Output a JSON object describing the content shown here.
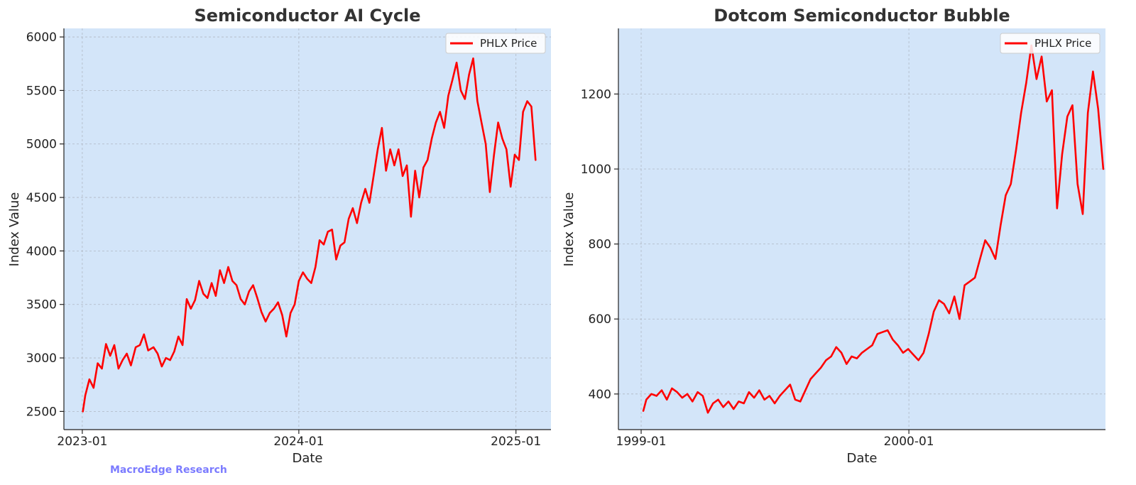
{
  "watermark": "MacroEdge Research",
  "chart_data": [
    {
      "type": "line",
      "title": "Semiconductor AI Cycle",
      "xlabel": "Date",
      "ylabel": "Index Value",
      "x_type": "date",
      "xlim": [
        "2022-12-01",
        "2025-03-01"
      ],
      "ylim": [
        2330,
        6080
      ],
      "y_ticks": [
        2500,
        3000,
        3500,
        4000,
        4500,
        5000,
        5500,
        6000
      ],
      "x_ticks": [
        {
          "value": "2023-01-01",
          "label": "2023-01"
        },
        {
          "value": "2024-01-01",
          "label": "2024-01"
        },
        {
          "value": "2025-01-01",
          "label": "2025-01"
        }
      ],
      "grid": true,
      "legend_position": "top-right",
      "colors": {
        "background": "#d3e5f9",
        "line": "#ff0000"
      },
      "series": [
        {
          "name": "PHLX Price",
          "color": "#ff0000",
          "points": [
            [
              "2023-01-02",
              2500
            ],
            [
              "2023-01-06",
              2650
            ],
            [
              "2023-01-13",
              2800
            ],
            [
              "2023-01-20",
              2720
            ],
            [
              "2023-01-27",
              2950
            ],
            [
              "2023-02-03",
              2900
            ],
            [
              "2023-02-10",
              3130
            ],
            [
              "2023-02-17",
              3020
            ],
            [
              "2023-02-24",
              3120
            ],
            [
              "2023-03-03",
              2900
            ],
            [
              "2023-03-10",
              2980
            ],
            [
              "2023-03-17",
              3040
            ],
            [
              "2023-03-24",
              2930
            ],
            [
              "2023-04-01",
              3100
            ],
            [
              "2023-04-08",
              3120
            ],
            [
              "2023-04-15",
              3220
            ],
            [
              "2023-04-22",
              3070
            ],
            [
              "2023-05-01",
              3100
            ],
            [
              "2023-05-08",
              3040
            ],
            [
              "2023-05-15",
              2920
            ],
            [
              "2023-05-22",
              3000
            ],
            [
              "2023-05-29",
              2980
            ],
            [
              "2023-06-05",
              3060
            ],
            [
              "2023-06-12",
              3200
            ],
            [
              "2023-06-19",
              3120
            ],
            [
              "2023-06-26",
              3550
            ],
            [
              "2023-07-03",
              3460
            ],
            [
              "2023-07-10",
              3540
            ],
            [
              "2023-07-17",
              3720
            ],
            [
              "2023-07-24",
              3600
            ],
            [
              "2023-07-31",
              3560
            ],
            [
              "2023-08-07",
              3700
            ],
            [
              "2023-08-14",
              3580
            ],
            [
              "2023-08-21",
              3820
            ],
            [
              "2023-08-28",
              3700
            ],
            [
              "2023-09-04",
              3850
            ],
            [
              "2023-09-11",
              3720
            ],
            [
              "2023-09-18",
              3680
            ],
            [
              "2023-09-25",
              3550
            ],
            [
              "2023-10-02",
              3500
            ],
            [
              "2023-10-09",
              3620
            ],
            [
              "2023-10-16",
              3680
            ],
            [
              "2023-10-23",
              3560
            ],
            [
              "2023-10-30",
              3430
            ],
            [
              "2023-11-06",
              3340
            ],
            [
              "2023-11-13",
              3420
            ],
            [
              "2023-11-20",
              3460
            ],
            [
              "2023-11-27",
              3520
            ],
            [
              "2023-12-04",
              3400
            ],
            [
              "2023-12-11",
              3200
            ],
            [
              "2023-12-18",
              3420
            ],
            [
              "2023-12-25",
              3500
            ],
            [
              "2024-01-01",
              3720
            ],
            [
              "2024-01-08",
              3800
            ],
            [
              "2024-01-15",
              3740
            ],
            [
              "2024-01-22",
              3700
            ],
            [
              "2024-01-29",
              3850
            ],
            [
              "2024-02-05",
              4100
            ],
            [
              "2024-02-12",
              4060
            ],
            [
              "2024-02-19",
              4180
            ],
            [
              "2024-02-26",
              4200
            ],
            [
              "2024-03-04",
              3920
            ],
            [
              "2024-03-11",
              4050
            ],
            [
              "2024-03-18",
              4080
            ],
            [
              "2024-03-25",
              4300
            ],
            [
              "2024-04-01",
              4400
            ],
            [
              "2024-04-08",
              4260
            ],
            [
              "2024-04-15",
              4450
            ],
            [
              "2024-04-22",
              4580
            ],
            [
              "2024-04-29",
              4450
            ],
            [
              "2024-05-06",
              4700
            ],
            [
              "2024-05-13",
              4950
            ],
            [
              "2024-05-20",
              5150
            ],
            [
              "2024-05-27",
              4750
            ],
            [
              "2024-06-03",
              4950
            ],
            [
              "2024-06-10",
              4800
            ],
            [
              "2024-06-17",
              4950
            ],
            [
              "2024-06-24",
              4700
            ],
            [
              "2024-07-01",
              4800
            ],
            [
              "2024-07-08",
              4320
            ],
            [
              "2024-07-15",
              4750
            ],
            [
              "2024-07-22",
              4500
            ],
            [
              "2024-07-29",
              4780
            ],
            [
              "2024-08-05",
              4850
            ],
            [
              "2024-08-12",
              5050
            ],
            [
              "2024-08-19",
              5200
            ],
            [
              "2024-08-26",
              5300
            ],
            [
              "2024-09-02",
              5150
            ],
            [
              "2024-09-09",
              5450
            ],
            [
              "2024-09-16",
              5600
            ],
            [
              "2024-09-23",
              5760
            ],
            [
              "2024-09-30",
              5500
            ],
            [
              "2024-10-07",
              5420
            ],
            [
              "2024-10-14",
              5650
            ],
            [
              "2024-10-21",
              5800
            ],
            [
              "2024-10-28",
              5400
            ],
            [
              "2024-11-04",
              5200
            ],
            [
              "2024-11-11",
              5000
            ],
            [
              "2024-11-18",
              4550
            ],
            [
              "2024-11-25",
              4900
            ],
            [
              "2024-12-02",
              5200
            ],
            [
              "2024-12-09",
              5050
            ],
            [
              "2024-12-16",
              4950
            ],
            [
              "2024-12-23",
              4600
            ],
            [
              "2024-12-30",
              4900
            ],
            [
              "2025-01-06",
              4850
            ],
            [
              "2025-01-13",
              5300
            ],
            [
              "2025-01-20",
              5400
            ],
            [
              "2025-01-27",
              5350
            ],
            [
              "2025-02-03",
              4850
            ]
          ]
        }
      ]
    },
    {
      "type": "line",
      "title": "Dotcom Semiconductor Bubble",
      "xlabel": "Date",
      "ylabel": "Index Value",
      "x_type": "date",
      "xlim": [
        "1998-12-01",
        "2000-09-25"
      ],
      "ylim": [
        305,
        1375
      ],
      "y_ticks": [
        400,
        600,
        800,
        1000,
        1200
      ],
      "x_ticks": [
        {
          "value": "1999-01-01",
          "label": "1999-01"
        },
        {
          "value": "2000-01-01",
          "label": "2000-01"
        }
      ],
      "grid": true,
      "legend_position": "top-right",
      "colors": {
        "background": "#d3e5f9",
        "line": "#ff0000"
      },
      "series": [
        {
          "name": "PHLX Price",
          "color": "#ff0000",
          "points": [
            [
              "1999-01-04",
              355
            ],
            [
              "1999-01-08",
              385
            ],
            [
              "1999-01-15",
              400
            ],
            [
              "1999-01-22",
              395
            ],
            [
              "1999-01-29",
              410
            ],
            [
              "1999-02-05",
              385
            ],
            [
              "1999-02-12",
              415
            ],
            [
              "1999-02-19",
              405
            ],
            [
              "1999-02-26",
              390
            ],
            [
              "1999-03-05",
              400
            ],
            [
              "1999-03-12",
              380
            ],
            [
              "1999-03-19",
              405
            ],
            [
              "1999-03-26",
              395
            ],
            [
              "1999-04-02",
              350
            ],
            [
              "1999-04-09",
              375
            ],
            [
              "1999-04-16",
              385
            ],
            [
              "1999-04-23",
              365
            ],
            [
              "1999-04-30",
              380
            ],
            [
              "1999-05-07",
              360
            ],
            [
              "1999-05-14",
              380
            ],
            [
              "1999-05-21",
              375
            ],
            [
              "1999-05-28",
              405
            ],
            [
              "1999-06-04",
              390
            ],
            [
              "1999-06-11",
              410
            ],
            [
              "1999-06-18",
              385
            ],
            [
              "1999-06-25",
              395
            ],
            [
              "1999-07-02",
              375
            ],
            [
              "1999-07-09",
              395
            ],
            [
              "1999-07-16",
              410
            ],
            [
              "1999-07-23",
              425
            ],
            [
              "1999-07-30",
              385
            ],
            [
              "1999-08-06",
              380
            ],
            [
              "1999-08-13",
              410
            ],
            [
              "1999-08-20",
              440
            ],
            [
              "1999-08-27",
              455
            ],
            [
              "1999-09-03",
              470
            ],
            [
              "1999-09-10",
              490
            ],
            [
              "1999-09-17",
              500
            ],
            [
              "1999-09-24",
              525
            ],
            [
              "1999-10-01",
              510
            ],
            [
              "1999-10-08",
              480
            ],
            [
              "1999-10-15",
              500
            ],
            [
              "1999-10-22",
              495
            ],
            [
              "1999-10-29",
              510
            ],
            [
              "1999-11-05",
              520
            ],
            [
              "1999-11-12",
              530
            ],
            [
              "1999-11-19",
              560
            ],
            [
              "1999-11-26",
              565
            ],
            [
              "1999-12-03",
              570
            ],
            [
              "1999-12-10",
              545
            ],
            [
              "1999-12-17",
              530
            ],
            [
              "1999-12-24",
              510
            ],
            [
              "1999-12-31",
              520
            ],
            [
              "2000-01-07",
              505
            ],
            [
              "2000-01-14",
              490
            ],
            [
              "2000-01-21",
              510
            ],
            [
              "2000-01-28",
              560
            ],
            [
              "2000-02-04",
              620
            ],
            [
              "2000-02-11",
              650
            ],
            [
              "2000-02-18",
              640
            ],
            [
              "2000-02-25",
              615
            ],
            [
              "2000-03-03",
              660
            ],
            [
              "2000-03-10",
              600
            ],
            [
              "2000-03-17",
              690
            ],
            [
              "2000-03-24",
              700
            ],
            [
              "2000-03-31",
              710
            ],
            [
              "2000-04-07",
              760
            ],
            [
              "2000-04-14",
              810
            ],
            [
              "2000-04-21",
              790
            ],
            [
              "2000-04-28",
              760
            ],
            [
              "2000-05-05",
              850
            ],
            [
              "2000-05-12",
              930
            ],
            [
              "2000-05-19",
              960
            ],
            [
              "2000-05-26",
              1050
            ],
            [
              "2000-06-02",
              1150
            ],
            [
              "2000-06-09",
              1230
            ],
            [
              "2000-06-16",
              1330
            ],
            [
              "2000-06-23",
              1240
            ],
            [
              "2000-06-30",
              1300
            ],
            [
              "2000-07-07",
              1180
            ],
            [
              "2000-07-14",
              1210
            ],
            [
              "2000-07-21",
              895
            ],
            [
              "2000-07-28",
              1040
            ],
            [
              "2000-08-04",
              1140
            ],
            [
              "2000-08-11",
              1170
            ],
            [
              "2000-08-18",
              960
            ],
            [
              "2000-08-25",
              880
            ],
            [
              "2000-09-01",
              1150
            ],
            [
              "2000-09-08",
              1260
            ],
            [
              "2000-09-15",
              1160
            ],
            [
              "2000-09-22",
              1000
            ]
          ]
        }
      ]
    }
  ]
}
